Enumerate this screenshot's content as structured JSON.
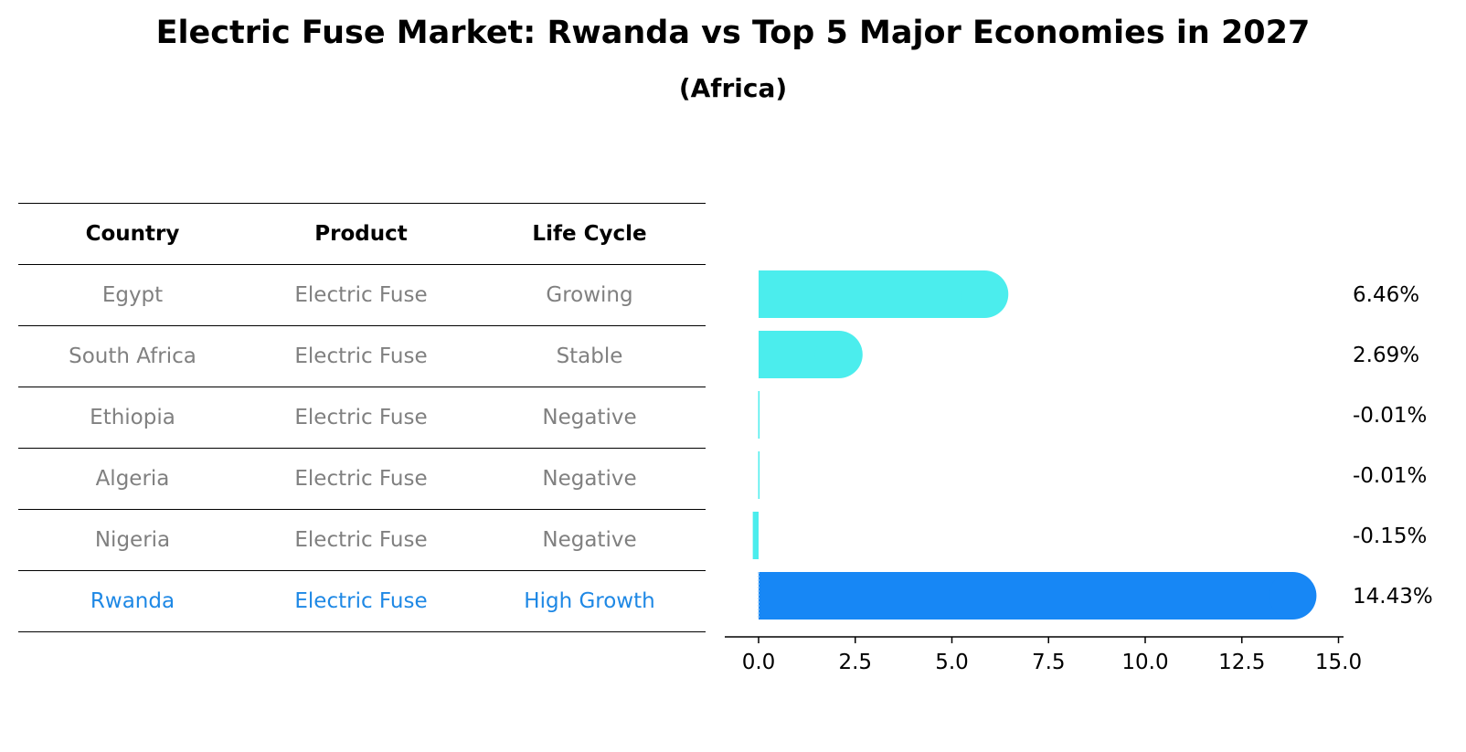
{
  "title": "Electric Fuse Market: Rwanda vs Top 5 Major Economies in 2027",
  "subtitle": "(Africa)",
  "table": {
    "headers": [
      "Country",
      "Product",
      "Life Cycle"
    ],
    "rows": [
      {
        "country": "Egypt",
        "product": "Electric Fuse",
        "life_cycle": "Growing"
      },
      {
        "country": "South Africa",
        "product": "Electric Fuse",
        "life_cycle": "Stable"
      },
      {
        "country": "Ethiopia",
        "product": "Electric Fuse",
        "life_cycle": "Negative"
      },
      {
        "country": "Algeria",
        "product": "Electric Fuse",
        "life_cycle": "Negative"
      },
      {
        "country": "Nigeria",
        "product": "Electric Fuse",
        "life_cycle": "Negative"
      },
      {
        "country": "Rwanda",
        "product": "Electric Fuse",
        "life_cycle": "High Growth"
      }
    ]
  },
  "colors": {
    "bar": "#4beded",
    "highlight_bar": "#1787f5",
    "highlight_text": "#1e88e5",
    "muted_text": "#808080"
  },
  "chart_data": {
    "type": "bar",
    "orientation": "horizontal",
    "categories": [
      "Egypt",
      "South Africa",
      "Ethiopia",
      "Algeria",
      "Nigeria",
      "Rwanda"
    ],
    "values": [
      6.46,
      2.69,
      -0.01,
      -0.01,
      -0.15,
      14.43
    ],
    "value_labels": [
      "6.46%",
      "2.69%",
      "-0.01%",
      "-0.01%",
      "-0.15%",
      "14.43%"
    ],
    "highlight": "Rwanda",
    "xlim": [
      -0.9,
      15.2
    ],
    "xticks": [
      0.0,
      2.5,
      5.0,
      7.5,
      10.0,
      12.5,
      15.0
    ],
    "xtick_labels": [
      "0.0",
      "2.5",
      "5.0",
      "7.5",
      "10.0",
      "12.5",
      "15.0"
    ],
    "grid": false,
    "title": "",
    "xlabel": "",
    "ylabel": ""
  }
}
